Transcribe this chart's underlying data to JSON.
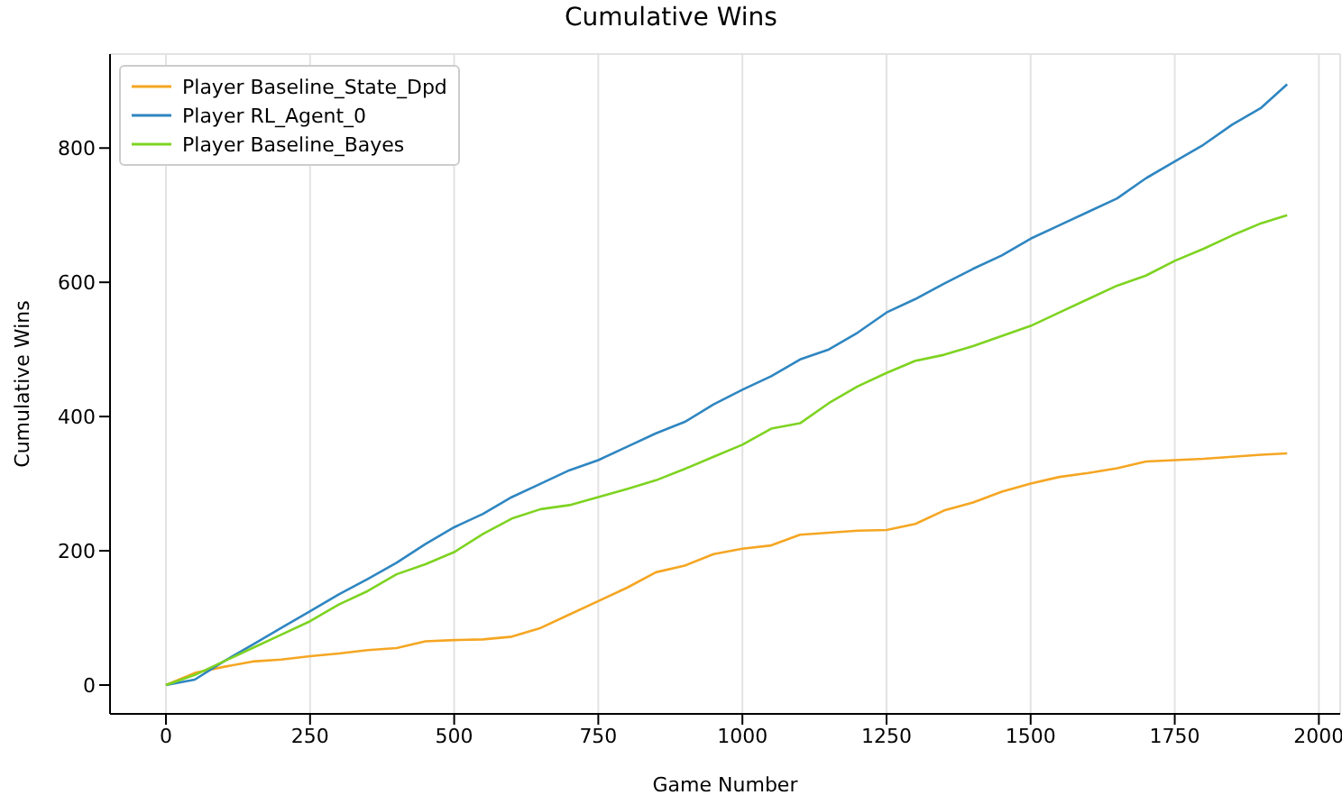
{
  "chart_data": {
    "type": "line",
    "title": "Cumulative Wins",
    "xlabel": "Game Number",
    "ylabel": "Cumulative Wins",
    "x": [
      0,
      50,
      100,
      150,
      200,
      250,
      300,
      350,
      400,
      450,
      500,
      550,
      600,
      650,
      700,
      750,
      800,
      850,
      900,
      950,
      1000,
      1050,
      1100,
      1150,
      1200,
      1250,
      1300,
      1350,
      1400,
      1450,
      1500,
      1550,
      1600,
      1650,
      1700,
      1750,
      1800,
      1850,
      1900,
      1945
    ],
    "series": [
      {
        "name": "Player Baseline_State_Dpd",
        "color": "#f5a623",
        "values": [
          0,
          18,
          27,
          35,
          38,
          43,
          47,
          52,
          55,
          65,
          67,
          68,
          72,
          85,
          105,
          125,
          145,
          168,
          178,
          195,
          203,
          208,
          224,
          227,
          230,
          231,
          240,
          260,
          272,
          288,
          300,
          310,
          316,
          323,
          333,
          335,
          337,
          340,
          343,
          345
        ]
      },
      {
        "name": "Player RL_Agent_0",
        "color": "#2f86c1",
        "values": [
          0,
          8,
          35,
          60,
          85,
          110,
          135,
          158,
          182,
          210,
          235,
          255,
          280,
          300,
          320,
          335,
          355,
          375,
          392,
          418,
          440,
          460,
          485,
          500,
          525,
          555,
          575,
          598,
          620,
          640,
          665,
          685,
          705,
          725,
          755,
          780,
          805,
          835,
          860,
          895
        ]
      },
      {
        "name": "Player Baseline_Bayes",
        "color": "#7ed321",
        "values": [
          0,
          15,
          35,
          55,
          75,
          95,
          120,
          140,
          165,
          180,
          198,
          225,
          248,
          262,
          268,
          280,
          292,
          305,
          322,
          340,
          358,
          382,
          390,
          420,
          445,
          465,
          483,
          492,
          505,
          520,
          535,
          555,
          575,
          595,
          610,
          632,
          650,
          670,
          688,
          700
        ]
      }
    ],
    "xlim": [
      -97,
      2037
    ],
    "xticks": [
      0,
      250,
      500,
      750,
      1000,
      1250,
      1500,
      1750,
      2000
    ],
    "ylim": [
      -43,
      940
    ],
    "yticks": [
      0,
      200,
      400,
      600,
      800
    ],
    "grid": true,
    "legend": "top left",
    "marker": "none",
    "line_style": "solid"
  }
}
